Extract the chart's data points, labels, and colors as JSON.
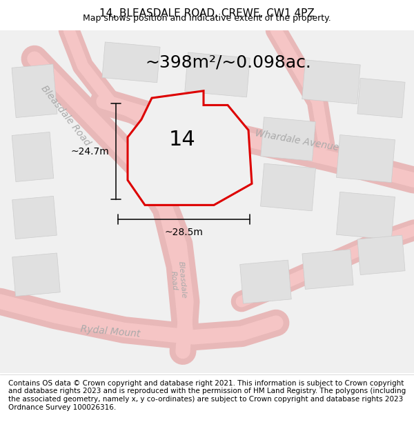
{
  "title": "14, BLEASDALE ROAD, CREWE, CW1 4PZ",
  "subtitle": "Map shows position and indicative extent of the property.",
  "area_text": "~398m²/~0.098ac.",
  "label_14": "14",
  "dim_vertical": "~24.7m",
  "dim_horizontal": "~28.5m",
  "footer": "Contains OS data © Crown copyright and database right 2021. This information is subject to Crown copyright and database rights 2023 and is reproduced with the permission of HM Land Registry. The polygons (including the associated geometry, namely x, y co-ordinates) are subject to Crown copyright and database rights 2023 Ordnance Survey 100026316.",
  "bg_color": "#f5f5f5",
  "map_bg": "#f0f0f0",
  "road_color": "#e8b8b8",
  "road_center_color": "#f5c5c5",
  "block_color": "#e0e0e0",
  "block_edge_color": "#cccccc",
  "plot_fill": "#f0f0f0",
  "plot_edge": "#dd0000",
  "dim_line_color": "#111111",
  "title_fontsize": 11,
  "subtitle_fontsize": 9,
  "area_fontsize": 18,
  "label_fontsize": 22,
  "dim_fontsize": 10,
  "footer_fontsize": 7.5,
  "street_label_color": "#aaaaaa",
  "street_label_fontsize": 10
}
